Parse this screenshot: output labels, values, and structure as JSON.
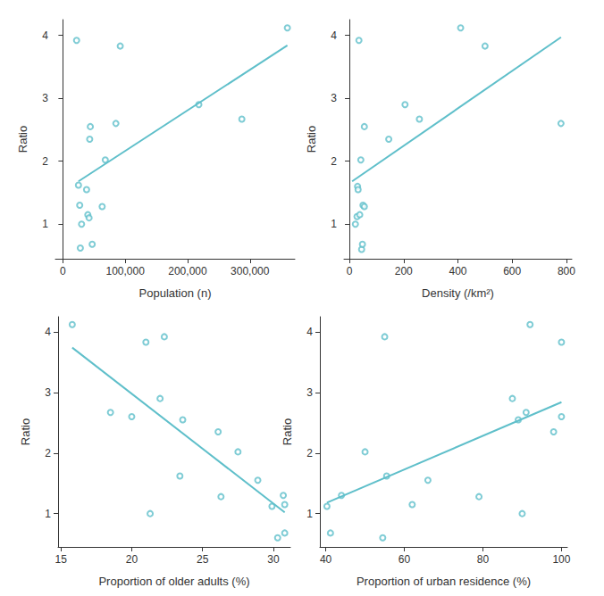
{
  "chart_data": [
    {
      "type": "scatter",
      "x_label": "Population (n)",
      "y_label": "Ratio",
      "xlim": [
        -12000,
        372000
      ],
      "xticks": [
        0,
        {
          "value": 100000,
          "label": "100,000"
        },
        {
          "value": 200000,
          "label": "200,000"
        },
        {
          "value": 300000,
          "label": "300,000"
        }
      ],
      "ylim": [
        0.45,
        4.25
      ],
      "yticks": [
        1,
        2,
        3,
        4
      ],
      "grid": false,
      "series": [
        {
          "type": "scatter",
          "color": "#5fbfca",
          "marker": "open_circle",
          "x": [
            22000,
            25000,
            27000,
            28000,
            30000,
            38000,
            40000,
            42000,
            43000,
            44000,
            47000,
            63000,
            68000,
            85000,
            92000,
            218000,
            287000,
            360000
          ],
          "values": [
            3.92,
            1.62,
            1.3,
            0.62,
            1.0,
            1.55,
            1.15,
            1.1,
            2.35,
            2.55,
            0.68,
            1.28,
            2.02,
            2.6,
            3.83,
            2.9,
            2.67,
            4.12
          ]
        },
        {
          "type": "line",
          "color": "#5fbfca",
          "line_style": "solid",
          "x": [
            25000,
            360000
          ],
          "values": [
            1.68,
            3.84
          ]
        }
      ]
    },
    {
      "type": "scatter",
      "x_label": "Density (/km²)",
      "y_label": "Ratio",
      "xlim": [
        -20,
        820
      ],
      "xticks": [
        0,
        200,
        400,
        600,
        800
      ],
      "ylim": [
        0.45,
        4.25
      ],
      "yticks": [
        1,
        2,
        3,
        4
      ],
      "grid": false,
      "series": [
        {
          "type": "scatter",
          "color": "#5fbfca",
          "marker": "open_circle",
          "x": [
            22,
            28,
            30,
            32,
            35,
            38,
            42,
            45,
            48,
            50,
            55,
            55,
            145,
            205,
            258,
            410,
            500,
            780
          ],
          "values": [
            1.0,
            1.12,
            1.6,
            1.55,
            3.92,
            1.15,
            2.02,
            0.6,
            0.68,
            1.3,
            2.55,
            1.28,
            2.35,
            2.9,
            2.67,
            4.12,
            3.83,
            2.6
          ]
        },
        {
          "type": "line",
          "color": "#5fbfca",
          "line_style": "solid",
          "x": [
            10,
            780
          ],
          "values": [
            1.68,
            3.97
          ]
        }
      ]
    },
    {
      "type": "scatter",
      "x_label": "Proportion of older adults (%)",
      "y_label": "Ratio",
      "xlim": [
        14.8,
        31.2
      ],
      "xticks": [
        15,
        20,
        25,
        30
      ],
      "ylim": [
        0.45,
        4.25
      ],
      "yticks": [
        1,
        2,
        3,
        4
      ],
      "grid": false,
      "series": [
        {
          "type": "scatter",
          "color": "#5fbfca",
          "marker": "open_circle",
          "x": [
            15.8,
            18.5,
            20,
            21,
            21.3,
            22,
            22.3,
            23.4,
            23.6,
            26.1,
            26.3,
            27.5,
            28.9,
            29.9,
            30.3,
            30.7,
            30.8,
            30.8
          ],
          "values": [
            4.12,
            2.67,
            2.6,
            3.83,
            1.0,
            2.9,
            3.92,
            1.62,
            2.55,
            2.35,
            1.28,
            2.02,
            1.55,
            1.12,
            0.6,
            1.3,
            1.15,
            0.68
          ]
        },
        {
          "type": "line",
          "color": "#5fbfca",
          "line_style": "solid",
          "x": [
            15.8,
            30.8
          ],
          "values": [
            3.74,
            1.02
          ]
        }
      ]
    },
    {
      "type": "scatter",
      "x_label": "Proportion of urban residence (%)",
      "y_label": "Ratio",
      "xlim": [
        38.5,
        101.5
      ],
      "xticks": [
        40,
        60,
        80,
        100
      ],
      "ylim": [
        0.45,
        4.25
      ],
      "yticks": [
        1,
        2,
        3,
        4
      ],
      "grid": false,
      "series": [
        {
          "type": "scatter",
          "color": "#5fbfca",
          "marker": "open_circle",
          "x": [
            40.3,
            41.2,
            44,
            50,
            54.5,
            55,
            55.5,
            62,
            66,
            79,
            87.5,
            89,
            90,
            91,
            92,
            98,
            100,
            100
          ],
          "values": [
            1.12,
            0.68,
            1.3,
            2.02,
            0.6,
            3.92,
            1.62,
            1.15,
            1.55,
            1.28,
            2.9,
            2.55,
            1.0,
            2.67,
            4.12,
            2.35,
            3.83,
            2.6
          ]
        },
        {
          "type": "line",
          "color": "#5fbfca",
          "line_style": "solid",
          "x": [
            40.3,
            100
          ],
          "values": [
            1.18,
            2.84
          ]
        }
      ]
    }
  ]
}
